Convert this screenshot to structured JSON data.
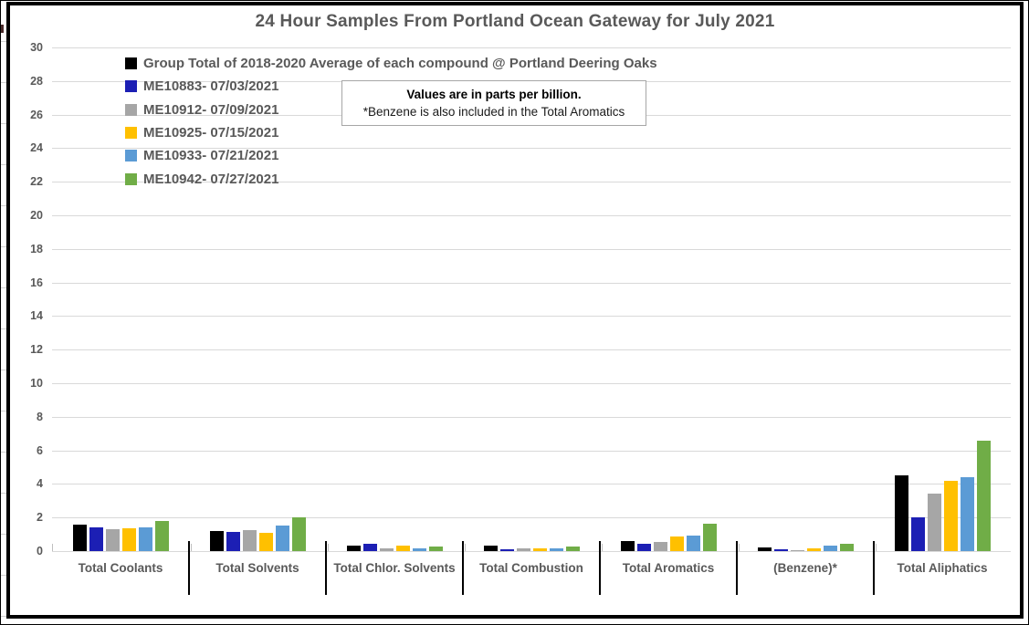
{
  "title": "24 Hour Samples From Portland Ocean Gateway for July 2021",
  "note": {
    "line1": "Values are in parts per billion.",
    "line2": "*Benzene is also included in the Total Aromatics"
  },
  "chart_data": {
    "type": "bar",
    "title": "24 Hour Samples From Portland Ocean Gateway for July 2021",
    "unit": "parts per billion",
    "categories": [
      "Total Coolants",
      "Total Solvents",
      "Total Chlor. Solvents",
      "Total Combustion",
      "Total Aromatics",
      "(Benzene)*",
      "Total Aliphatics"
    ],
    "series": [
      {
        "name": "Group Total of 2018-2020 Average of each compound @ Portland Deering Oaks",
        "color": "#000000",
        "values": [
          1.6,
          1.2,
          0.35,
          0.3,
          0.6,
          0.2,
          4.5
        ]
      },
      {
        "name": "ME10883- 07/03/2021",
        "color": "#1C1FB4",
        "values": [
          1.4,
          1.15,
          0.45,
          0.12,
          0.45,
          0.1,
          2.0
        ]
      },
      {
        "name": "ME10912- 07/09/2021",
        "color": "#A6A6A6",
        "values": [
          1.3,
          1.25,
          0.15,
          0.15,
          0.55,
          0.08,
          3.4
        ]
      },
      {
        "name": "ME10925- 07/15/2021",
        "color": "#FFC000",
        "values": [
          1.35,
          1.1,
          0.35,
          0.15,
          0.85,
          0.15,
          4.2
        ]
      },
      {
        "name": "ME10933- 07/21/2021",
        "color": "#5B9BD5",
        "values": [
          1.4,
          1.5,
          0.15,
          0.17,
          0.9,
          0.3,
          4.4
        ]
      },
      {
        "name": "ME10942- 07/27/2021",
        "color": "#70AD47",
        "values": [
          1.8,
          2.0,
          0.25,
          0.28,
          1.65,
          0.45,
          6.6
        ]
      }
    ],
    "ylim": [
      0,
      30
    ],
    "ytick_step": 2,
    "grid": true,
    "legend_position": "top-left-inside",
    "gridline_color": "#D9D9D9",
    "text_color": "#595959"
  }
}
